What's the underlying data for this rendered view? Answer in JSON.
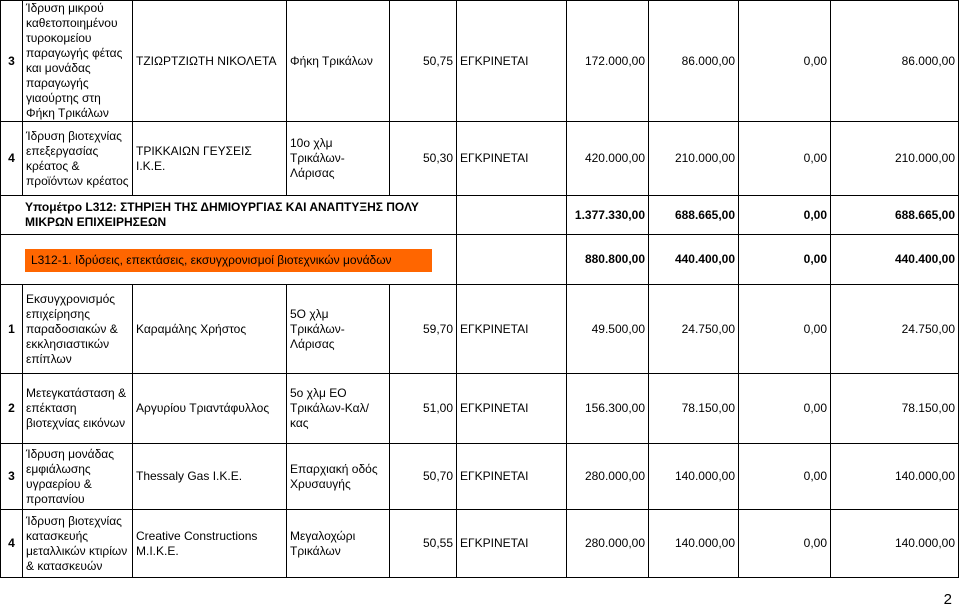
{
  "top_rows": [
    {
      "num": "3",
      "desc": "Ίδρυση μικρού καθετοποιημένου τυροκομείου παραγωγής φέτας και μονάδας παραγωγής γιαούρτης στη Φήκη Τρικάλων",
      "name": "ΤΖΙΩΡΤΖΙΩΤΗ ΝΙΚΟΛΕΤΑ",
      "loc": "Φήκη Τρικάλων",
      "score": "50,75",
      "status": "ΕΓΚΡΙΝΕΤΑΙ",
      "budget": "172.000,00",
      "public": "86.000,00",
      "other": "0,00",
      "total": "86.000,00"
    },
    {
      "num": "4",
      "desc": "Ίδρυση βιοτεχνίας επεξεργασίας κρέατος & προϊόντων κρέατος",
      "name": "ΤΡΙΚΚΑΙΩΝ ΓΕΥΣΕΙΣ Ι.Κ.Ε.",
      "loc": "10ο χλμ Τρικάλων-Λάρισας",
      "score": "50,30",
      "status": "ΕΓΚΡΙΝΕΤΑΙ",
      "budget": "420.000,00",
      "public": "210.000,00",
      "other": "0,00",
      "total": "210.000,00"
    }
  ],
  "measure": {
    "label": "Υπομέτρο L312: ΣΤΗΡΙΞΗ ΤΗΣ ΔΗΜΙΟΥΡΓΙΑΣ ΚΑΙ ΑΝΑΠΤΥΞΗΣ ΠΟΛΥ ΜΙΚΡΩΝ ΕΠΙΧΕΙΡΗΣΕΩΝ",
    "budget": "1.377.330,00",
    "public": "688.665,00",
    "other": "0,00",
    "total": "688.665,00"
  },
  "action": {
    "label": "L312-1. Ιδρύσεις, επεκτάσεις, εκσυγχρονισμοί βιοτεχνικών μονάδων",
    "budget": "880.800,00",
    "public": "440.400,00",
    "other": "0,00",
    "total": "440.400,00",
    "color": "#ff6600"
  },
  "rows": [
    {
      "num": "1",
      "desc": "Εκσυγχρονισμός επιχείρησης παραδοσιακών & εκκλησιαστικών επίπλων",
      "name": "Καραμάλης Χρήστος",
      "loc": "5Ο χλμ Τρικάλων-Λάρισας",
      "score": "59,70",
      "status": "ΕΓΚΡΙΝΕΤΑΙ",
      "budget": "49.500,00",
      "public": "24.750,00",
      "other": "0,00",
      "total": "24.750,00"
    },
    {
      "num": "2",
      "desc": "Μετεγκατάσταση & επέκταση βιοτεχνίας εικόνων",
      "name": "Αργυρίου Τριαντάφυλλος",
      "loc": "5ο χλμ ΕΟ Τρικάλων-Καλ/κας",
      "score": "51,00",
      "status": "ΕΓΚΡΙΝΕΤΑΙ",
      "budget": "156.300,00",
      "public": "78.150,00",
      "other": "0,00",
      "total": "78.150,00"
    },
    {
      "num": "3",
      "desc": "Ίδρυση μονάδας εμφιάλωσης υγραερίου & προπανίου",
      "name": "Thessaly Gas Ι.Κ.Ε.",
      "loc": "Επαρχιακή οδός Χρυσαυγής",
      "score": "50,70",
      "status": "ΕΓΚΡΙΝΕΤΑΙ",
      "budget": "280.000,00",
      "public": "140.000,00",
      "other": "0,00",
      "total": "140.000,00"
    },
    {
      "num": "4",
      "desc": "Ίδρυση βιοτεχνίας κατασκευής μεταλλικών κτιρίων & κατασκευών",
      "name": "Creative Constructions Μ.Ι.Κ.Ε.",
      "loc": "Μεγαλοχώρι Τρικάλων",
      "score": "50,55",
      "status": "ΕΓΚΡΙΝΕΤΑΙ",
      "budget": "280.000,00",
      "public": "140.000,00",
      "other": "0,00",
      "total": "140.000,00"
    }
  ],
  "page_number": "2"
}
